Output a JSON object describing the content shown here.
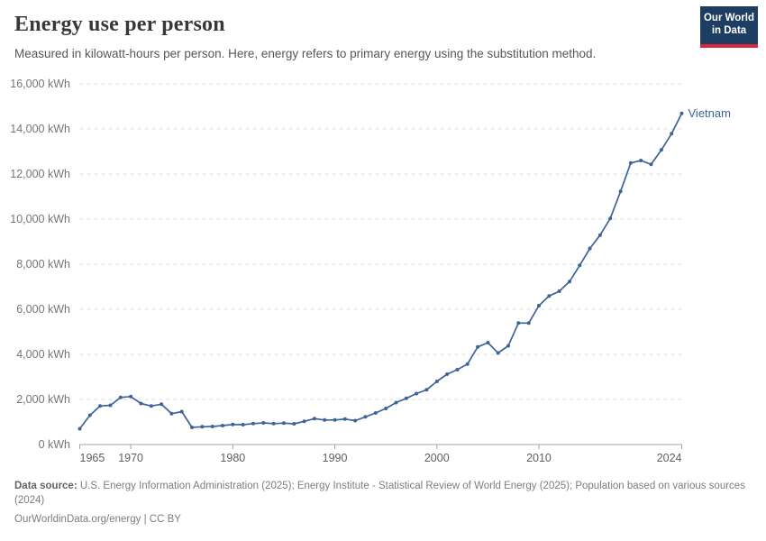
{
  "header": {
    "title": "Energy use per person",
    "subtitle": "Measured in kilowatt-hours per person. Here, energy refers to primary energy using the substitution method.",
    "logo": {
      "line1": "Our World",
      "line2": "in Data",
      "bg_color": "#1d3d63",
      "stripe_color": "#d8283a"
    }
  },
  "chart_data": {
    "type": "line",
    "title": "Energy use per person",
    "xlabel": "",
    "ylabel": "kWh",
    "xlim": [
      1965,
      2024
    ],
    "ylim": [
      0,
      16000
    ],
    "x_ticks": [
      1965,
      1970,
      1980,
      1990,
      2000,
      2010,
      2024
    ],
    "y_ticks": [
      0,
      2000,
      4000,
      6000,
      8000,
      10000,
      12000,
      14000,
      16000
    ],
    "y_tick_suffix": " kWh",
    "grid": "horizontal-dashed",
    "legend_position": "end-of-line-label",
    "series": [
      {
        "name": "Vietnam",
        "color": "#3d6497",
        "x": [
          1965,
          1966,
          1967,
          1968,
          1969,
          1970,
          1971,
          1972,
          1973,
          1974,
          1975,
          1976,
          1977,
          1978,
          1979,
          1980,
          1981,
          1982,
          1983,
          1984,
          1985,
          1986,
          1987,
          1988,
          1989,
          1990,
          1991,
          1992,
          1993,
          1994,
          1995,
          1996,
          1997,
          1998,
          1999,
          2000,
          2001,
          2002,
          2003,
          2004,
          2005,
          2006,
          2007,
          2008,
          2009,
          2010,
          2011,
          2012,
          2013,
          2014,
          2015,
          2016,
          2017,
          2018,
          2019,
          2020,
          2021,
          2022,
          2023,
          2024
        ],
        "values": [
          700,
          1300,
          1710,
          1740,
          2090,
          2130,
          1820,
          1710,
          1790,
          1370,
          1460,
          760,
          790,
          800,
          840,
          890,
          880,
          930,
          960,
          930,
          950,
          920,
          1030,
          1150,
          1090,
          1090,
          1130,
          1060,
          1230,
          1400,
          1600,
          1860,
          2050,
          2260,
          2430,
          2800,
          3120,
          3320,
          3570,
          4330,
          4520,
          4060,
          4380,
          5390,
          5390,
          6160,
          6590,
          6800,
          7230,
          7950,
          8700,
          9290,
          10030,
          11230,
          12490,
          12600,
          12430,
          13070,
          13790,
          14690
        ]
      }
    ]
  },
  "footer": {
    "source_label": "Data source:",
    "source_text": "U.S. Energy Information Administration (2025); Energy Institute - Statistical Review of World Energy (2025); Population based on various sources (2024)",
    "link_text": "OurWorldinData.org/energy",
    "license": "| CC BY"
  },
  "colors": {
    "grid": "#dcdcdc",
    "axis": "#a3a3a3",
    "y_tick_label": "#757575",
    "x_tick_label": "#5f5f5f",
    "series_blue": "#3d6497"
  }
}
